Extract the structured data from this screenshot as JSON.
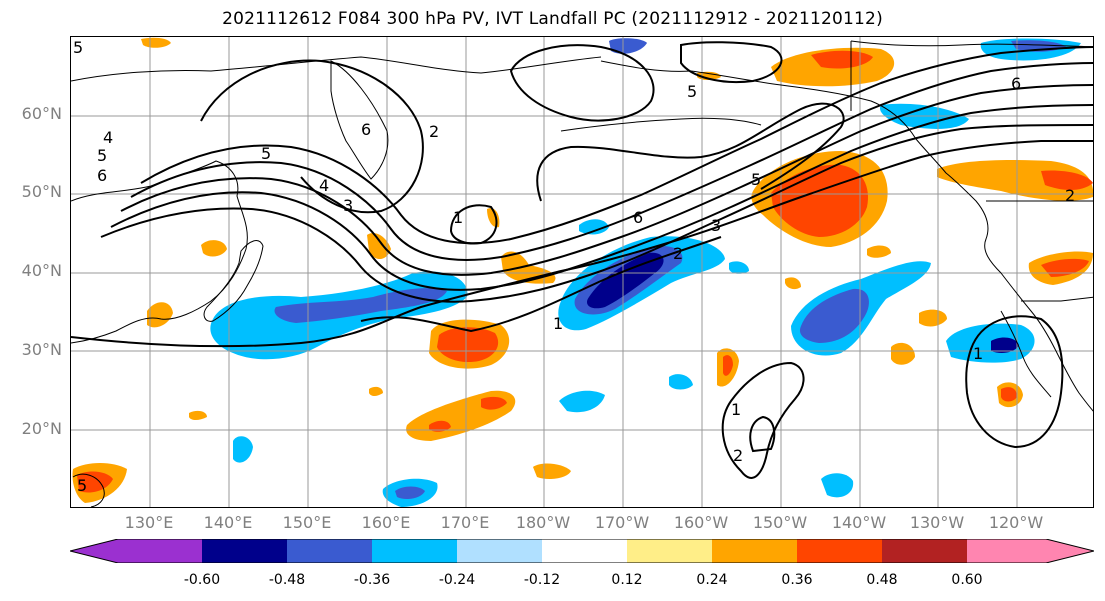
{
  "title": "2021112612 F084 300 hPa PV, IVT Landfall PC (2021112912 - 2021120112)",
  "lat_labels": [
    "60°N",
    "50°N",
    "40°N",
    "30°N",
    "20°N"
  ],
  "lon_labels": [
    "130°E",
    "140°E",
    "150°E",
    "160°E",
    "170°E",
    "180°W",
    "170°W",
    "160°W",
    "150°W",
    "140°W",
    "130°W",
    "120°W"
  ],
  "colorbar": {
    "tick_labels": [
      "-0.60",
      "-0.48",
      "-0.36",
      "-0.24",
      "-0.12",
      "0.12",
      "0.24",
      "0.36",
      "0.48",
      "0.60"
    ],
    "colors": [
      "#9b30d0",
      "#00008b",
      "#3a5bd0",
      "#00bfff",
      "#b0e0ff",
      "#ffffff",
      "#ffee88",
      "#ffa500",
      "#ff4500",
      "#b22222",
      "#ff85b0"
    ]
  },
  "contour_labels": [
    "1",
    "2",
    "3",
    "4",
    "5",
    "6"
  ],
  "colors": {
    "land_outline": "#000000",
    "grid": "#999999",
    "contour": "#000000"
  }
}
